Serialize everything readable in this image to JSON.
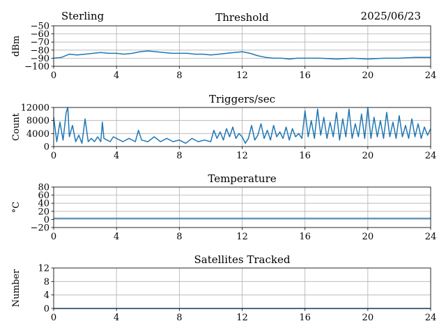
{
  "header": {
    "station": "Sterling",
    "date": "2025/06/23"
  },
  "line_color": "#1f77b4",
  "chart_data": [
    {
      "type": "line",
      "title": "Threshold",
      "ylabel": "dBm",
      "xlim": [
        0,
        24
      ],
      "ylim": [
        -100,
        -50
      ],
      "xticks": [
        0,
        4,
        8,
        12,
        16,
        20,
        24
      ],
      "xtick_labels": [
        "0",
        "4",
        "8",
        "12",
        "16",
        "20",
        "24"
      ],
      "yticks": [
        -100,
        -90,
        -80,
        -70,
        -60,
        -50
      ],
      "ytick_labels": [
        "−100",
        "−90",
        "−80",
        "−70",
        "−60",
        "−50"
      ],
      "grid": true,
      "series": [
        {
          "x": [
            0,
            0.5,
            1.0,
            1.5,
            2.0,
            2.5,
            3.0,
            3.5,
            4.0,
            4.5,
            5.0,
            5.5,
            6.0,
            6.5,
            7.0,
            7.5,
            8.0,
            8.5,
            9.0,
            9.5,
            10.0,
            10.5,
            11.0,
            11.5,
            12.0,
            12.5,
            13.0,
            13.5,
            14.0,
            14.5,
            15.0,
            15.5,
            16.0,
            17.0,
            18.0,
            19.0,
            20.0,
            21.0,
            22.0,
            23.0,
            24.0
          ],
          "y": [
            -90,
            -89,
            -85,
            -86,
            -85,
            -84,
            -83,
            -84,
            -84,
            -85,
            -84,
            -82,
            -81,
            -82,
            -83,
            -84,
            -84,
            -84,
            -85,
            -85,
            -86,
            -85,
            -84,
            -83,
            -82,
            -84,
            -87,
            -89,
            -90,
            -90,
            -91,
            -90,
            -90,
            -90,
            -91,
            -90,
            -91,
            -90,
            -90,
            -89,
            -89
          ]
        }
      ]
    },
    {
      "type": "line",
      "title": "Triggers/sec",
      "ylabel": "Count",
      "xlim": [
        0,
        24
      ],
      "ylim": [
        0,
        12000
      ],
      "xticks": [
        0,
        4,
        8,
        12,
        16,
        20,
        24
      ],
      "xtick_labels": [
        "0",
        "4",
        "8",
        "12",
        "16",
        "20",
        "24"
      ],
      "yticks": [
        0,
        4000,
        8000,
        12000
      ],
      "ytick_labels": [
        "0",
        "4000",
        "8000",
        "12000"
      ],
      "grid": true,
      "series": [
        {
          "x": [
            0,
            0.2,
            0.4,
            0.6,
            0.8,
            0.9,
            1.0,
            1.2,
            1.4,
            1.6,
            1.8,
            2.0,
            2.2,
            2.4,
            2.6,
            2.8,
            3.0,
            3.1,
            3.2,
            3.4,
            3.6,
            3.8,
            4.0,
            4.4,
            4.8,
            5.2,
            5.4,
            5.6,
            6.0,
            6.4,
            6.8,
            7.2,
            7.6,
            8.0,
            8.4,
            8.8,
            9.2,
            9.6,
            10.0,
            10.2,
            10.4,
            10.6,
            10.8,
            11.0,
            11.2,
            11.4,
            11.6,
            11.8,
            12.0,
            12.2,
            12.4,
            12.6,
            12.8,
            13.0,
            13.2,
            13.4,
            13.6,
            13.8,
            14.0,
            14.2,
            14.4,
            14.6,
            14.8,
            15.0,
            15.2,
            15.4,
            15.6,
            15.8,
            16.0,
            16.2,
            16.4,
            16.6,
            16.8,
            17.0,
            17.2,
            17.4,
            17.6,
            17.8,
            18.0,
            18.2,
            18.4,
            18.6,
            18.8,
            19.0,
            19.2,
            19.4,
            19.6,
            19.8,
            20.0,
            20.2,
            20.4,
            20.6,
            20.8,
            21.0,
            21.2,
            21.4,
            21.6,
            21.8,
            22.0,
            22.2,
            22.4,
            22.6,
            22.8,
            23.0,
            23.2,
            23.4,
            23.6,
            23.8,
            24.0
          ],
          "y": [
            9000,
            1500,
            7500,
            2000,
            10500,
            12000,
            3000,
            6500,
            1500,
            3500,
            1000,
            8500,
            1500,
            2500,
            1500,
            3000,
            1500,
            7500,
            2500,
            2000,
            1500,
            3000,
            2500,
            1500,
            2500,
            1500,
            5000,
            2000,
            1500,
            3000,
            1500,
            2500,
            1500,
            2000,
            1000,
            2500,
            1500,
            2000,
            1500,
            5000,
            2500,
            4500,
            2000,
            5500,
            3000,
            6000,
            2500,
            4000,
            3000,
            1000,
            2500,
            6500,
            2000,
            3500,
            7000,
            2500,
            5000,
            2000,
            6500,
            3000,
            4500,
            2500,
            6000,
            2000,
            5500,
            3000,
            4000,
            2500,
            11000,
            3000,
            8000,
            2500,
            11500,
            3500,
            9000,
            2500,
            7500,
            3000,
            10500,
            2000,
            8500,
            3000,
            11500,
            2500,
            7000,
            3000,
            10000,
            2500,
            12000,
            2500,
            9000,
            3000,
            8000,
            2500,
            10500,
            3000,
            7500,
            2500,
            9500,
            3000,
            6500,
            2500,
            8500,
            3000,
            7000,
            2500,
            6000,
            3500,
            5500
          ]
        }
      ]
    },
    {
      "type": "line",
      "title": "Temperature",
      "ylabel": "°C",
      "xlim": [
        0,
        24
      ],
      "ylim": [
        -20,
        80
      ],
      "xticks": [
        0,
        4,
        8,
        12,
        16,
        20,
        24
      ],
      "xtick_labels": [
        "0",
        "4",
        "8",
        "12",
        "16",
        "20",
        "24"
      ],
      "yticks": [
        -20,
        0,
        20,
        40,
        60,
        80
      ],
      "ytick_labels": [
        "−20",
        "0",
        "20",
        "40",
        "60",
        "80"
      ],
      "grid": true,
      "series": [
        {
          "x": [
            0,
            24
          ],
          "y": [
            3,
            3
          ]
        }
      ]
    },
    {
      "type": "line",
      "title": "Satellites Tracked",
      "ylabel": "Number",
      "xlim": [
        0,
        24
      ],
      "ylim": [
        0,
        12
      ],
      "xticks": [
        0,
        4,
        8,
        12,
        16,
        20,
        24
      ],
      "xtick_labels": [
        "0",
        "4",
        "8",
        "12",
        "16",
        "20",
        "24"
      ],
      "yticks": [
        0,
        4,
        8,
        12
      ],
      "ytick_labels": [
        "0",
        "4",
        "8",
        "12"
      ],
      "grid": true,
      "series": [
        {
          "x": [
            0,
            24
          ],
          "y": [
            0,
            0
          ]
        }
      ]
    }
  ]
}
